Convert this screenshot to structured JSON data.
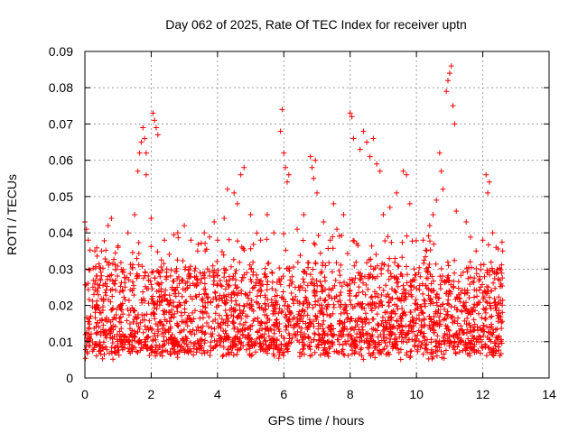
{
  "chart_data": {
    "type": "scatter",
    "title": "Day 062 of 2025, Rate Of TEC Index for receiver uptn",
    "xlabel": "GPS time / hours",
    "ylabel": "ROTI / TECUs",
    "xlim": [
      0,
      14
    ],
    "ylim": [
      0,
      0.09
    ],
    "x_ticks": [
      0,
      2,
      4,
      6,
      8,
      10,
      12,
      14
    ],
    "y_ticks": [
      0,
      0.01,
      0.02,
      0.03,
      0.04,
      0.05,
      0.06,
      0.07,
      0.08,
      0.09
    ],
    "x_tick_labels": [
      "0",
      "2",
      "4",
      "6",
      "8",
      "10",
      "12",
      "14"
    ],
    "y_tick_labels": [
      "0",
      "0.01",
      "0.02",
      "0.03",
      "0.04",
      "0.05",
      "0.06",
      "0.07",
      "0.08",
      "0.09"
    ],
    "grid": true,
    "marker": "plus",
    "series": [
      {
        "name": "ROTI",
        "color": "#ff0000",
        "data_x_range": [
          0,
          12.6
        ],
        "dense_band": [
          0.005,
          0.03
        ],
        "points": [
          [
            0.0,
            0.043
          ],
          [
            0.05,
            0.041
          ],
          [
            0.1,
            0.038
          ],
          [
            0.3,
            0.035
          ],
          [
            0.5,
            0.035
          ],
          [
            0.7,
            0.042
          ],
          [
            0.8,
            0.044
          ],
          [
            1.0,
            0.036
          ],
          [
            1.3,
            0.04
          ],
          [
            1.5,
            0.045
          ],
          [
            1.6,
            0.057
          ],
          [
            1.65,
            0.062
          ],
          [
            1.7,
            0.065
          ],
          [
            1.75,
            0.069
          ],
          [
            1.8,
            0.066
          ],
          [
            1.85,
            0.062
          ],
          [
            1.85,
            0.056
          ],
          [
            2.0,
            0.044
          ],
          [
            2.05,
            0.073
          ],
          [
            2.1,
            0.071
          ],
          [
            2.15,
            0.069
          ],
          [
            2.2,
            0.067
          ],
          [
            2.4,
            0.038
          ],
          [
            2.8,
            0.04
          ],
          [
            3.0,
            0.042
          ],
          [
            3.2,
            0.038
          ],
          [
            3.4,
            0.035
          ],
          [
            3.6,
            0.04
          ],
          [
            3.9,
            0.043
          ],
          [
            4.0,
            0.038
          ],
          [
            4.2,
            0.044
          ],
          [
            4.3,
            0.052
          ],
          [
            4.5,
            0.051
          ],
          [
            4.6,
            0.048
          ],
          [
            4.7,
            0.056
          ],
          [
            4.8,
            0.058
          ],
          [
            5.0,
            0.045
          ],
          [
            5.3,
            0.038
          ],
          [
            5.5,
            0.045
          ],
          [
            5.7,
            0.04
          ],
          [
            5.9,
            0.068
          ],
          [
            5.95,
            0.074
          ],
          [
            6.0,
            0.062
          ],
          [
            6.05,
            0.058
          ],
          [
            6.1,
            0.054
          ],
          [
            6.15,
            0.056
          ],
          [
            6.4,
            0.041
          ],
          [
            6.6,
            0.045
          ],
          [
            6.8,
            0.061
          ],
          [
            6.85,
            0.058
          ],
          [
            6.9,
            0.055
          ],
          [
            6.95,
            0.06
          ],
          [
            7.0,
            0.051
          ],
          [
            7.2,
            0.043
          ],
          [
            7.4,
            0.038
          ],
          [
            7.5,
            0.048
          ],
          [
            7.6,
            0.041
          ],
          [
            7.8,
            0.045
          ],
          [
            8.0,
            0.073
          ],
          [
            8.05,
            0.072
          ],
          [
            8.1,
            0.066
          ],
          [
            8.3,
            0.063
          ],
          [
            8.4,
            0.068
          ],
          [
            8.5,
            0.065
          ],
          [
            8.6,
            0.061
          ],
          [
            8.7,
            0.066
          ],
          [
            8.8,
            0.059
          ],
          [
            8.9,
            0.057
          ],
          [
            9.0,
            0.045
          ],
          [
            9.2,
            0.047
          ],
          [
            9.4,
            0.051
          ],
          [
            9.6,
            0.057
          ],
          [
            9.7,
            0.056
          ],
          [
            9.8,
            0.048
          ],
          [
            10.2,
            0.038
          ],
          [
            10.4,
            0.042
          ],
          [
            10.5,
            0.045
          ],
          [
            10.6,
            0.049
          ],
          [
            10.7,
            0.062
          ],
          [
            10.75,
            0.057
          ],
          [
            10.8,
            0.052
          ],
          [
            10.9,
            0.079
          ],
          [
            10.95,
            0.082
          ],
          [
            11.0,
            0.084
          ],
          [
            11.05,
            0.086
          ],
          [
            11.1,
            0.075
          ],
          [
            11.15,
            0.07
          ],
          [
            11.2,
            0.046
          ],
          [
            11.5,
            0.043
          ],
          [
            11.8,
            0.035
          ],
          [
            12.0,
            0.038
          ],
          [
            12.1,
            0.056
          ],
          [
            12.15,
            0.051
          ],
          [
            12.2,
            0.054
          ],
          [
            12.3,
            0.04
          ],
          [
            12.4,
            0.036
          ],
          [
            12.5,
            0.03
          ],
          [
            12.6,
            0.035
          ]
        ]
      }
    ]
  }
}
